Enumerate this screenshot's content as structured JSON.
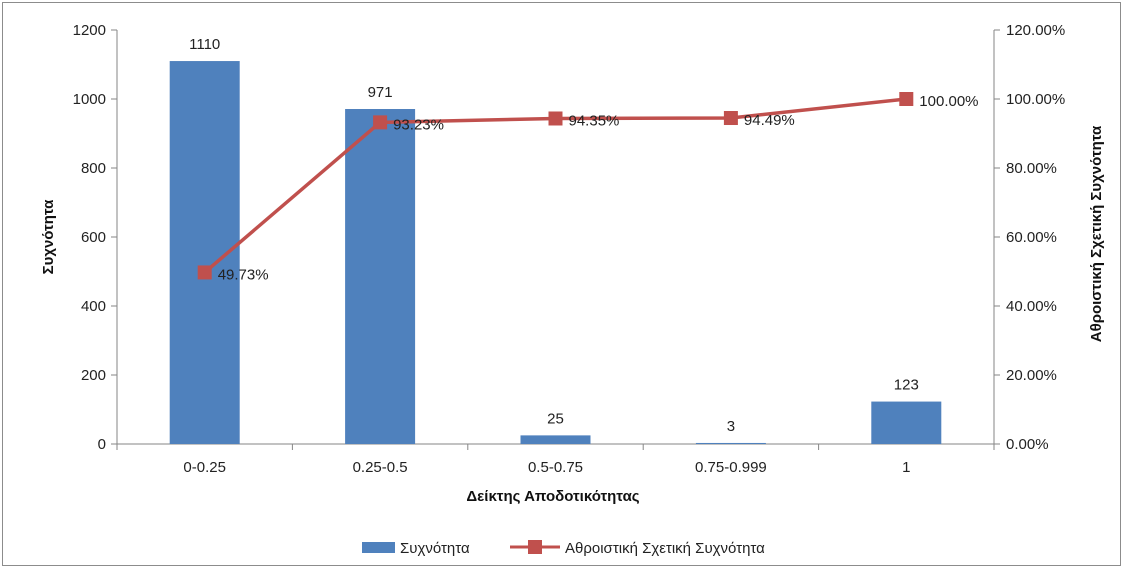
{
  "chart_data": {
    "type": "bar",
    "categories": [
      "0-0.25",
      "0.25-0.5",
      "0.5-0.75",
      "0.75-0.999",
      "1"
    ],
    "series": [
      {
        "name": "Συχνότητα",
        "type": "bar",
        "axis": "left",
        "color": "#4f81bd",
        "values": [
          1110,
          971,
          25,
          3,
          123
        ],
        "labels": [
          "1110",
          "971",
          "25",
          "3",
          "123"
        ]
      },
      {
        "name": "Αθροιστική Σχετική Συχνότητα",
        "type": "line",
        "axis": "right",
        "color": "#c0504d",
        "marker": "square",
        "values": [
          49.73,
          93.23,
          94.35,
          94.49,
          100.0
        ],
        "labels": [
          "49.73%",
          "93.23%",
          "94.35%",
          "94.49%",
          "100.00%"
        ]
      }
    ],
    "xlabel": "Δείκτης Αποδοτικότητας",
    "ylabel": "Συχνότητα",
    "y2label": "Αθροιστική Σχετική Συχνότητα",
    "ylim": [
      0,
      1200
    ],
    "y2lim": [
      0,
      120
    ],
    "yticks": [
      "0",
      "200",
      "400",
      "600",
      "800",
      "1000",
      "1200"
    ],
    "y2ticks": [
      "0.00%",
      "20.00%",
      "40.00%",
      "60.00%",
      "80.00%",
      "100.00%",
      "120.00%"
    ],
    "grid": false,
    "legend_position": "bottom"
  }
}
